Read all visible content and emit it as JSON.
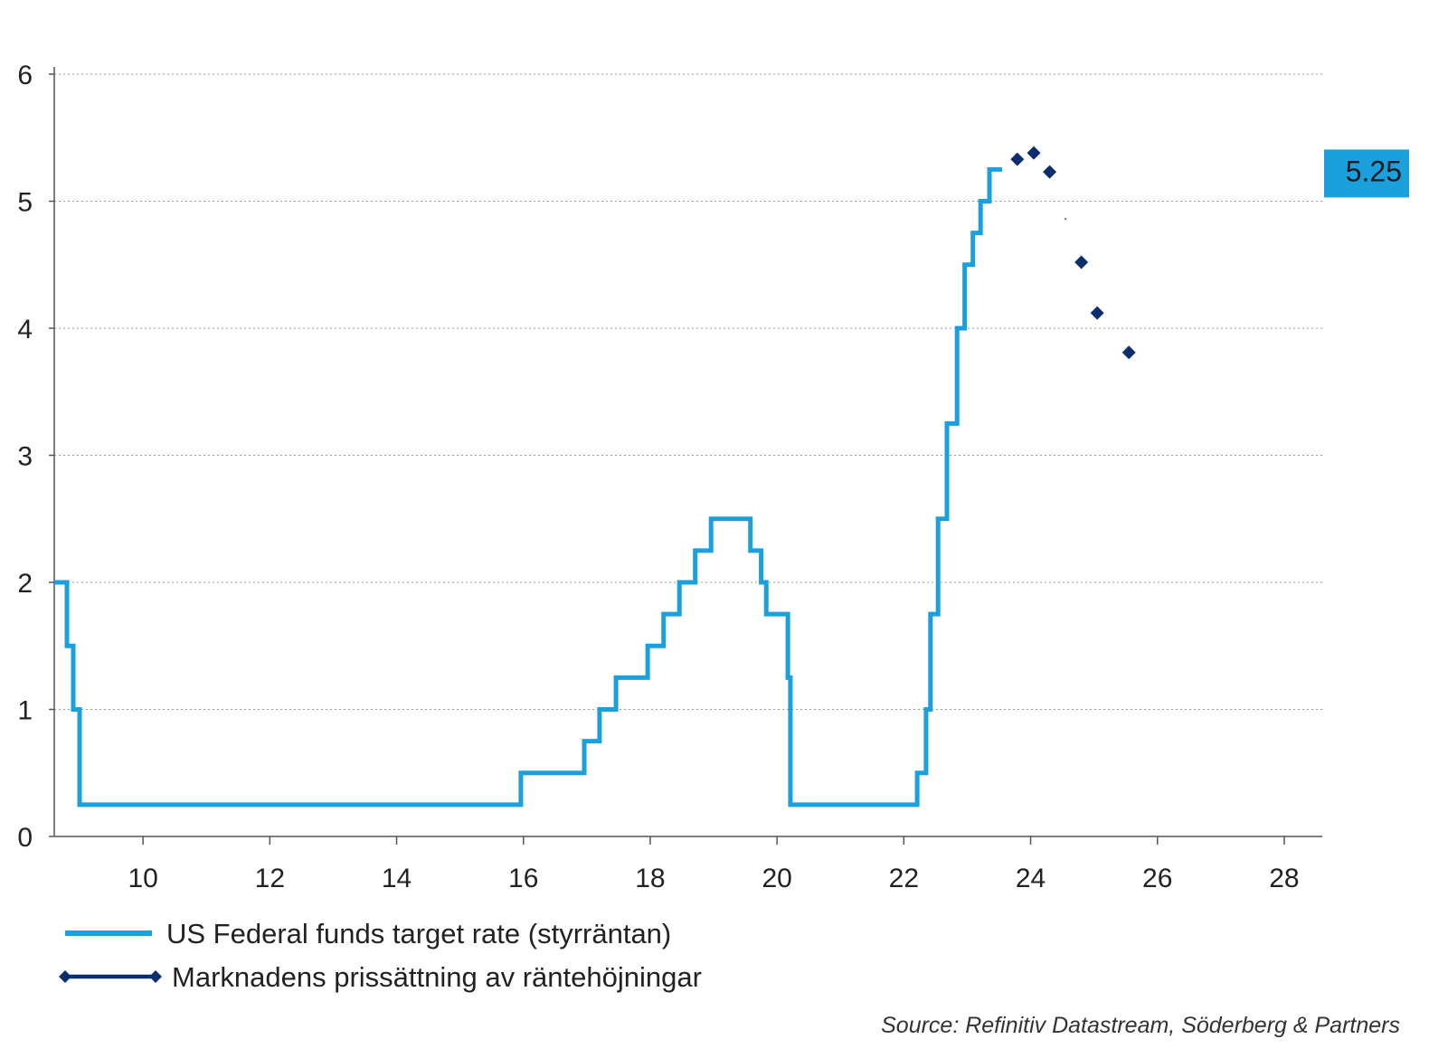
{
  "chart_data": {
    "type": "line",
    "title": "",
    "xlabel": "",
    "ylabel": "",
    "xlim": [
      8.6,
      28.6
    ],
    "ylim": [
      0,
      6
    ],
    "x_ticks": [
      10,
      12,
      14,
      16,
      18,
      20,
      22,
      24,
      26,
      28
    ],
    "x_tick_labels": [
      "10",
      "12",
      "14",
      "16",
      "18",
      "20",
      "22",
      "24",
      "26",
      "28"
    ],
    "y_ticks": [
      0,
      1,
      2,
      3,
      4,
      5,
      6
    ],
    "y_tick_labels": [
      "0",
      "1",
      "2",
      "3",
      "4",
      "5",
      "6"
    ],
    "grid": "horizontal dotted",
    "legend_position": "bottom-left",
    "series": [
      {
        "name": "US Federal funds target rate (styrräntan)",
        "style": "step",
        "color": "#1aa0dc",
        "x": [
          8.6,
          8.8,
          8.8,
          8.9,
          8.9,
          9.0,
          9.0,
          15.96,
          15.96,
          16.96,
          16.96,
          17.2,
          17.2,
          17.46,
          17.46,
          17.96,
          17.96,
          18.21,
          18.21,
          18.46,
          18.46,
          18.71,
          18.71,
          18.96,
          18.96,
          19.58,
          19.58,
          19.75,
          19.75,
          19.83,
          19.83,
          20.17,
          20.17,
          20.21,
          20.21,
          22.21,
          22.21,
          22.35,
          22.35,
          22.42,
          22.42,
          22.54,
          22.54,
          22.68,
          22.68,
          22.84,
          22.84,
          22.96,
          22.96,
          23.09,
          23.09,
          23.21,
          23.21,
          23.35,
          23.35,
          23.55
        ],
        "y": [
          2.0,
          2.0,
          1.5,
          1.5,
          1.0,
          1.0,
          0.25,
          0.25,
          0.5,
          0.5,
          0.75,
          0.75,
          1.0,
          1.0,
          1.25,
          1.25,
          1.5,
          1.5,
          1.75,
          1.75,
          2.0,
          2.0,
          2.25,
          2.25,
          2.5,
          2.5,
          2.25,
          2.25,
          2.0,
          2.0,
          1.75,
          1.75,
          1.25,
          1.25,
          0.25,
          0.25,
          0.5,
          0.5,
          1.0,
          1.0,
          1.75,
          1.75,
          2.5,
          2.5,
          3.25,
          3.25,
          4.0,
          4.0,
          4.5,
          4.5,
          4.75,
          4.75,
          5.0,
          5.0,
          5.25,
          5.25
        ]
      },
      {
        "name": "Marknadens prissättning av räntehöjningar",
        "style": "markers",
        "color": "#0d2e6e",
        "x": [
          23.79,
          24.05,
          24.3,
          24.55,
          24.8,
          25.05,
          25.55
        ],
        "y": [
          5.33,
          5.38,
          5.23,
          4.86,
          4.52,
          4.12,
          3.81
        ],
        "marker_sizes": [
          1,
          1,
          1,
          0.15,
          1,
          1,
          1
        ]
      }
    ],
    "annotations": [
      {
        "text": "5.25",
        "value": 5.25,
        "background": "#1aa0dc"
      }
    ],
    "source": "Source: Refinitiv Datastream, Söderberg & Partners"
  }
}
